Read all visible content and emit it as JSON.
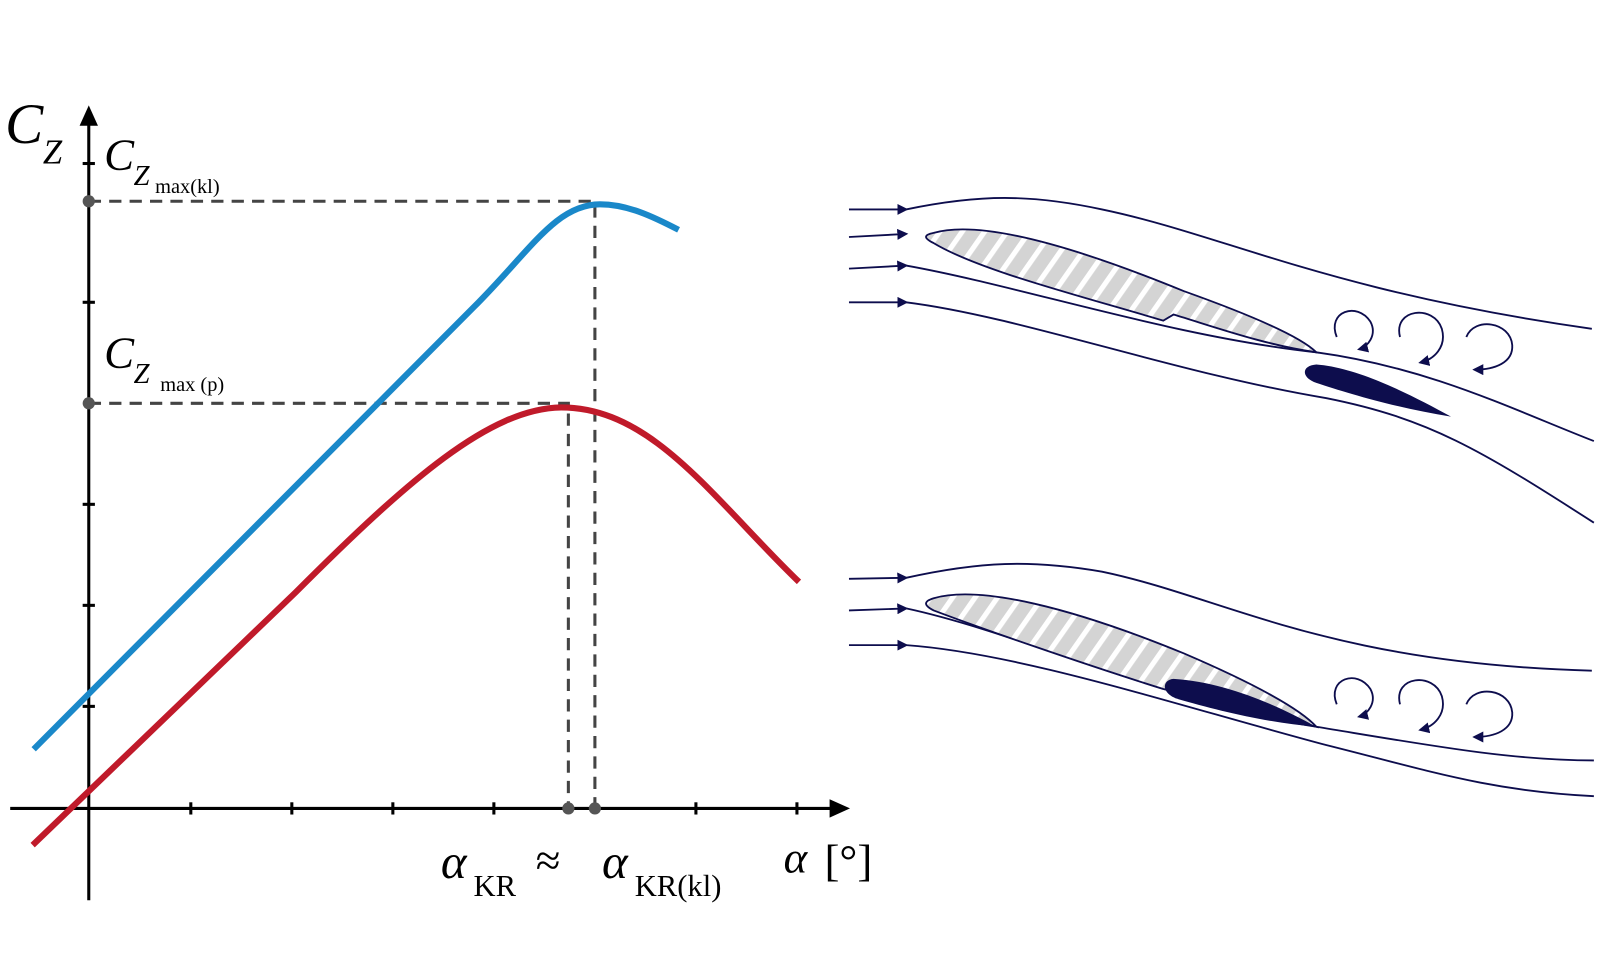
{
  "y_axis_label": {
    "main": "C",
    "sub": "Z"
  },
  "cz_max_kl": {
    "main": "C",
    "sub": "Z",
    "subsub": "max(kl)"
  },
  "cz_max_p": {
    "main": "C",
    "sub": "Z",
    "subsub": "max (p)"
  },
  "alpha_kr": {
    "main": "α",
    "sub": "KR"
  },
  "approx": "≈",
  "alpha_kr_kl": {
    "main": "α",
    "sub": "KR(kl)"
  },
  "x_axis_label": {
    "symbol": "α",
    "unit": "[°]"
  }
}
